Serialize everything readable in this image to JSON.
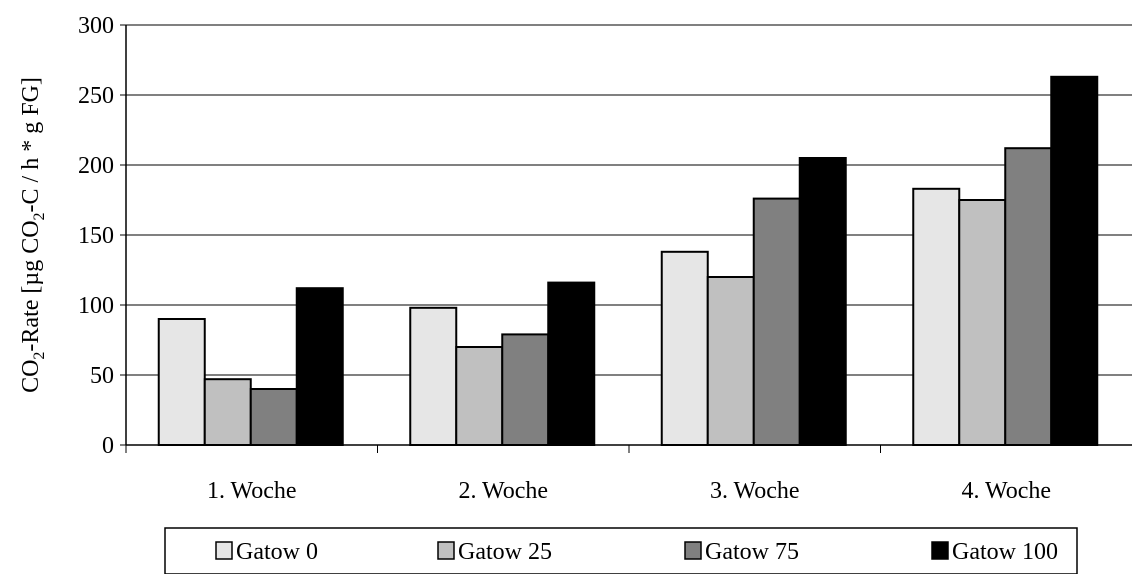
{
  "chart_data": {
    "type": "bar",
    "categories": [
      "1. Woche",
      "2. Woche",
      "3. Woche",
      "4. Woche"
    ],
    "series": [
      {
        "name": "Gatow 0",
        "color": "#e6e6e6",
        "values": [
          90,
          98,
          138,
          183
        ]
      },
      {
        "name": "Gatow 25",
        "color": "#c0c0c0",
        "values": [
          47,
          70,
          120,
          175
        ]
      },
      {
        "name": "Gatow 75",
        "color": "#808080",
        "values": [
          40,
          79,
          176,
          212
        ]
      },
      {
        "name": "Gatow 100",
        "color": "#000000",
        "values": [
          112,
          116,
          205,
          263
        ]
      }
    ],
    "ylim": [
      0,
      300
    ],
    "yticks": [
      "0",
      "50",
      "100",
      "150",
      "200",
      "250",
      "300"
    ],
    "ylabel_parts": {
      "p1": "CO",
      "sub1": "2",
      "p2": "-Rate [µg CO",
      "sub2": "2",
      "p3": "-C / h * g FG]"
    },
    "grid": true,
    "legend": "bottom"
  }
}
